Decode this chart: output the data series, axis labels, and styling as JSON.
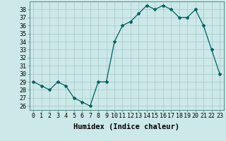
{
  "x": [
    0,
    1,
    2,
    3,
    4,
    5,
    6,
    7,
    8,
    9,
    10,
    11,
    12,
    13,
    14,
    15,
    16,
    17,
    18,
    19,
    20,
    21,
    22,
    23
  ],
  "y": [
    29,
    28.5,
    28,
    29,
    28.5,
    27,
    26.5,
    26,
    29,
    29,
    34,
    36,
    36.5,
    37.5,
    38.5,
    38,
    38.5,
    38,
    37,
    37,
    38,
    36,
    33,
    30
  ],
  "line_color": "#006060",
  "marker": "*",
  "marker_size": 3,
  "bg_color": "#cce8e8",
  "grid_color": "#aacccc",
  "xlabel": "Humidex (Indice chaleur)",
  "xlim": [
    -0.5,
    23.5
  ],
  "ylim": [
    25.5,
    39.0
  ],
  "yticks": [
    26,
    27,
    28,
    29,
    30,
    31,
    32,
    33,
    34,
    35,
    36,
    37,
    38
  ],
  "xticks": [
    0,
    1,
    2,
    3,
    4,
    5,
    6,
    7,
    8,
    9,
    10,
    11,
    12,
    13,
    14,
    15,
    16,
    17,
    18,
    19,
    20,
    21,
    22,
    23
  ],
  "xtick_labels": [
    "0",
    "1",
    "2",
    "3",
    "4",
    "5",
    "6",
    "7",
    "8",
    "9",
    "10",
    "11",
    "12",
    "13",
    "14",
    "15",
    "16",
    "17",
    "18",
    "19",
    "20",
    "21",
    "22",
    "23"
  ],
  "tick_fontsize": 6,
  "label_fontsize": 7.5
}
